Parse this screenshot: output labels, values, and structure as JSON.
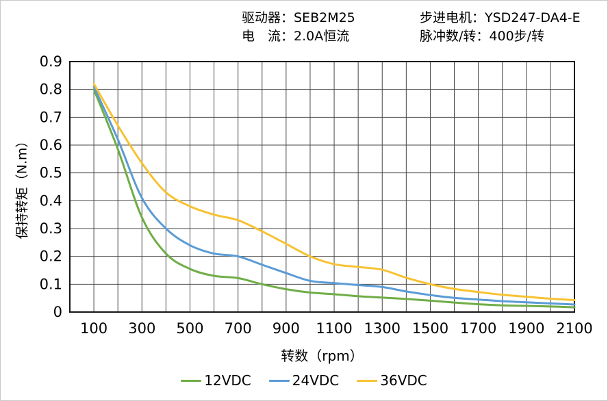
{
  "header": {
    "driver_label": "驱动器：SEB2M25",
    "current_label": "电　流：2.0A恒流",
    "motor_label": "步进电机：YSD247-DA4-E",
    "pulses_label": "脉冲数/转：400步/转"
  },
  "chart_data": {
    "type": "line",
    "title": "",
    "xlabel": "转数（rpm）",
    "ylabel": "保持转矩（N.m）",
    "xlim": [
      0,
      2100
    ],
    "ylim": [
      0,
      0.9
    ],
    "grid": "on",
    "grid_x_step_rpm": 100,
    "grid_y_step": 0.1,
    "grid_color": "#454545",
    "border_color": "#151515",
    "legend_position": "bottom-center",
    "x_ticks": [
      100,
      300,
      500,
      700,
      900,
      1100,
      1300,
      1500,
      1700,
      1900,
      2100
    ],
    "y_ticks": [
      "0",
      "0.1",
      "0.2",
      "0.3",
      "0.4",
      "0.5",
      "0.6",
      "0.7",
      "0.8",
      "0.9"
    ],
    "x": [
      100,
      200,
      300,
      400,
      500,
      600,
      700,
      800,
      900,
      1000,
      1100,
      1200,
      1300,
      1400,
      1500,
      1600,
      1700,
      1800,
      1900,
      2000,
      2100
    ],
    "series": [
      {
        "name": "12VDC",
        "color": "#70AD47",
        "values": [
          0.8,
          0.585,
          0.34,
          0.21,
          0.155,
          0.13,
          0.122,
          0.1,
          0.082,
          0.07,
          0.064,
          0.057,
          0.052,
          0.047,
          0.041,
          0.034,
          0.028,
          0.024,
          0.022,
          0.02,
          0.017
        ]
      },
      {
        "name": "24VDC",
        "color": "#5B9BD5",
        "values": [
          0.81,
          0.62,
          0.41,
          0.3,
          0.24,
          0.21,
          0.2,
          0.17,
          0.14,
          0.112,
          0.104,
          0.097,
          0.09,
          0.074,
          0.061,
          0.051,
          0.045,
          0.039,
          0.035,
          0.031,
          0.027
        ]
      },
      {
        "name": "36VDC",
        "color": "#F7C231",
        "values": [
          0.82,
          0.67,
          0.535,
          0.43,
          0.38,
          0.35,
          0.33,
          0.29,
          0.245,
          0.2,
          0.172,
          0.162,
          0.152,
          0.123,
          0.1,
          0.083,
          0.072,
          0.062,
          0.055,
          0.048,
          0.043
        ]
      }
    ]
  }
}
